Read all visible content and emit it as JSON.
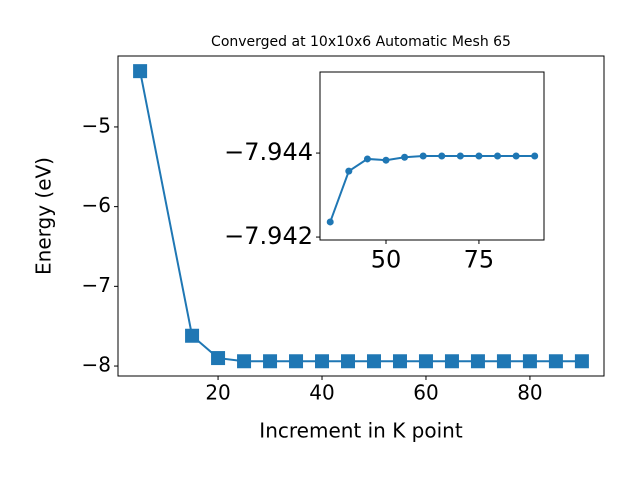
{
  "chart_data": [
    {
      "type": "line",
      "title": "Converged at 10x10x6 Automatic Mesh 65",
      "x_label": "Increment in K point",
      "y_label": "Energy (eV)",
      "x": [
        5,
        15,
        20,
        25,
        30,
        35,
        40,
        45,
        50,
        55,
        60,
        65,
        70,
        75,
        80,
        85,
        90
      ],
      "series": [
        {
          "color": "#1f77b4",
          "marker": "square",
          "values": [
            -4.3,
            -7.62,
            -7.9,
            -7.94,
            -7.94,
            -7.94,
            -7.94,
            -7.94,
            -7.94,
            -7.94,
            -7.94,
            -7.94,
            -7.94,
            -7.94,
            -7.94,
            -7.94,
            -7.94
          ]
        }
      ],
      "xlim": [
        0.75,
        94.25
      ],
      "ylim": [
        -8.125,
        -4.11
      ],
      "xticks": [
        20,
        40,
        60,
        80
      ],
      "yticks": [
        {
          "value": -8,
          "label": "−8"
        },
        {
          "value": -7,
          "label": "−7"
        },
        {
          "value": -6,
          "label": "−6"
        },
        {
          "value": -5,
          "label": "−5"
        }
      ]
    },
    {
      "type": "line",
      "x": [
        35,
        40,
        45,
        50,
        55,
        60,
        65,
        70,
        75,
        80,
        85,
        90
      ],
      "series": [
        {
          "color": "#1f77b4",
          "marker": "circle",
          "values": [
            -7.94236,
            -7.94357,
            -7.94386,
            -7.94383,
            -7.9439,
            -7.94393,
            -7.94393,
            -7.94393,
            -7.94393,
            -7.94393,
            -7.94393,
            -7.94393
          ]
        }
      ],
      "xlim": [
        32.25,
        92.5
      ],
      "ylim": [
        -7.94193,
        -7.94593
      ],
      "xticks": [
        50,
        75
      ],
      "yticks": [
        {
          "value": -7.942,
          "label": "−7.942"
        },
        {
          "value": -7.944,
          "label": "−7.944"
        }
      ]
    }
  ]
}
